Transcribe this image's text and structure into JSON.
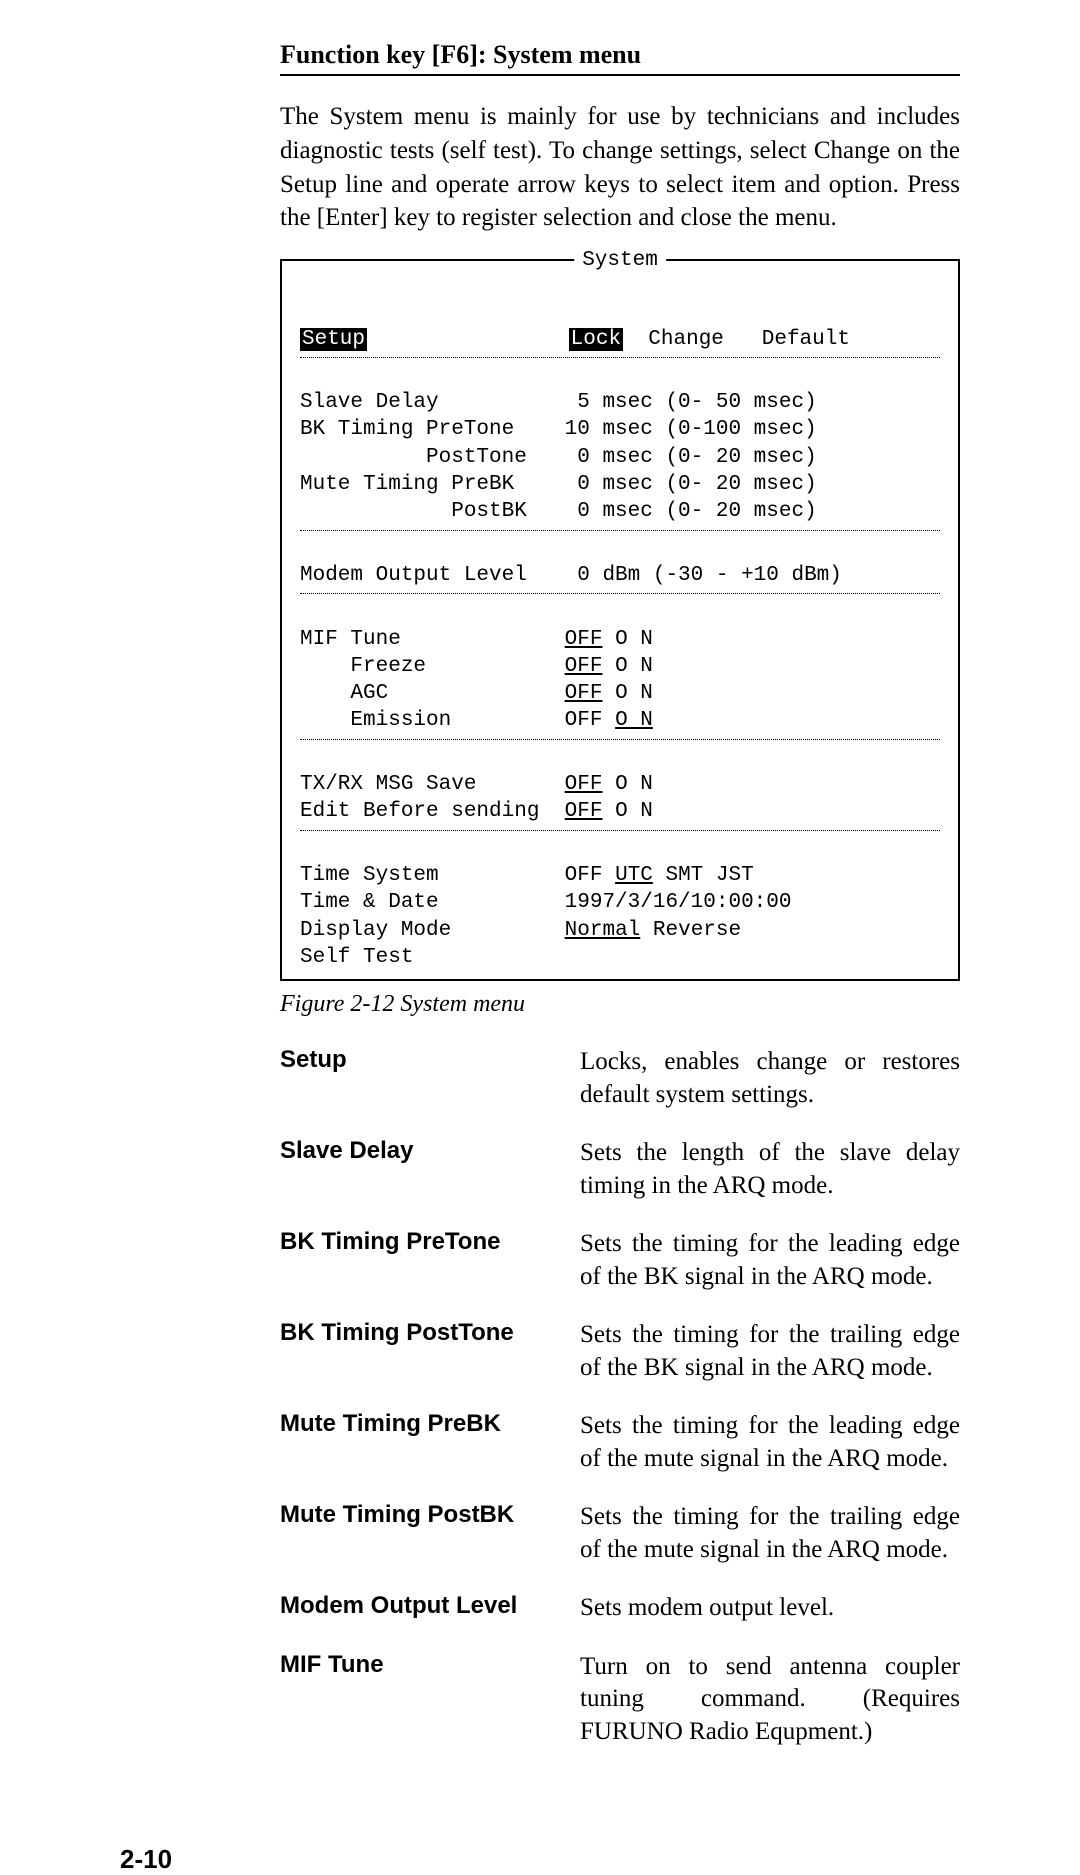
{
  "section_title": "Function key [F6]: System menu",
  "intro": "The System menu is mainly for use by technicians and includes diagnostic tests (self test). To change settings, select Change on the Setup line and operate arrow keys to select item and option. Press the [Enter] key to register selection and close the menu.",
  "system_box": {
    "legend": "System",
    "header": {
      "setup_label": "Setup",
      "lock_label": "Lock",
      "change_label": "Change",
      "default_label": "Default"
    },
    "block1": {
      "l1": "Slave Delay           5 msec (0- 50 msec)",
      "l2": "BK Timing PreTone    10 msec (0-100 msec)",
      "l3": "          PostTone    0 msec (0- 20 msec)",
      "l4": "Mute Timing PreBK     0 msec (0- 20 msec)",
      "l5": "            PostBK    0 msec (0- 20 msec)"
    },
    "block2": {
      "l1": "Modem Output Level    0 dBm (-30 - +10 dBm)"
    },
    "block3": {
      "r1_label": "MIF Tune             ",
      "r1_off": "OFF",
      "r1_on": " O N",
      "r2_label": "    Freeze           ",
      "r2_off": "OFF",
      "r2_on": " O N",
      "r3_label": "    AGC              ",
      "r3_off": "OFF",
      "r3_on": " O N",
      "r4_label": "    Emission         ",
      "r4_off": "OFF ",
      "r4_on": "O N"
    },
    "block4": {
      "r1_label": "TX/RX MSG Save       ",
      "r1_off": "OFF",
      "r1_on": " O N",
      "r2_label": "Edit Before sending  ",
      "r2_off": "OFF",
      "r2_on": " O N"
    },
    "block5": {
      "r1_label": "Time System          OFF ",
      "r1_utc": "UTC",
      "r1_rest": " SMT JST",
      "r2": "Time & Date          1997/3/16/10:00:00",
      "r3_label": "Display Mode         ",
      "r3_normal": "Normal",
      "r3_rest": " Reverse",
      "r4": "Self Test"
    }
  },
  "caption": "Figure 2-12 System menu",
  "definitions": [
    {
      "term": "Setup",
      "desc": "Locks, enables change or restores default system settings."
    },
    {
      "term": "Slave Delay",
      "desc": "Sets the length of the slave delay timing in the ARQ mode."
    },
    {
      "term": "BK Timing PreTone",
      "desc": "Sets the timing for the leading edge of the BK signal in the ARQ mode."
    },
    {
      "term": "BK Timing PostTone",
      "desc": "Sets the timing for the trailing edge of the BK signal in the ARQ mode."
    },
    {
      "term": "Mute Timing PreBK",
      "desc": "Sets the timing for the leading edge of the mute signal in the ARQ mode."
    },
    {
      "term": "Mute Timing PostBK",
      "desc": "Sets the timing for the trailing edge of the mute signal in the ARQ mode."
    },
    {
      "term": "Modem Output Level",
      "desc": "Sets modem output level."
    },
    {
      "term": "MIF Tune",
      "desc": "Turn on to send antenna coupler tuning command. (Requires FURUNO Radio Equpment.)"
    }
  ],
  "page_number": "2-10"
}
